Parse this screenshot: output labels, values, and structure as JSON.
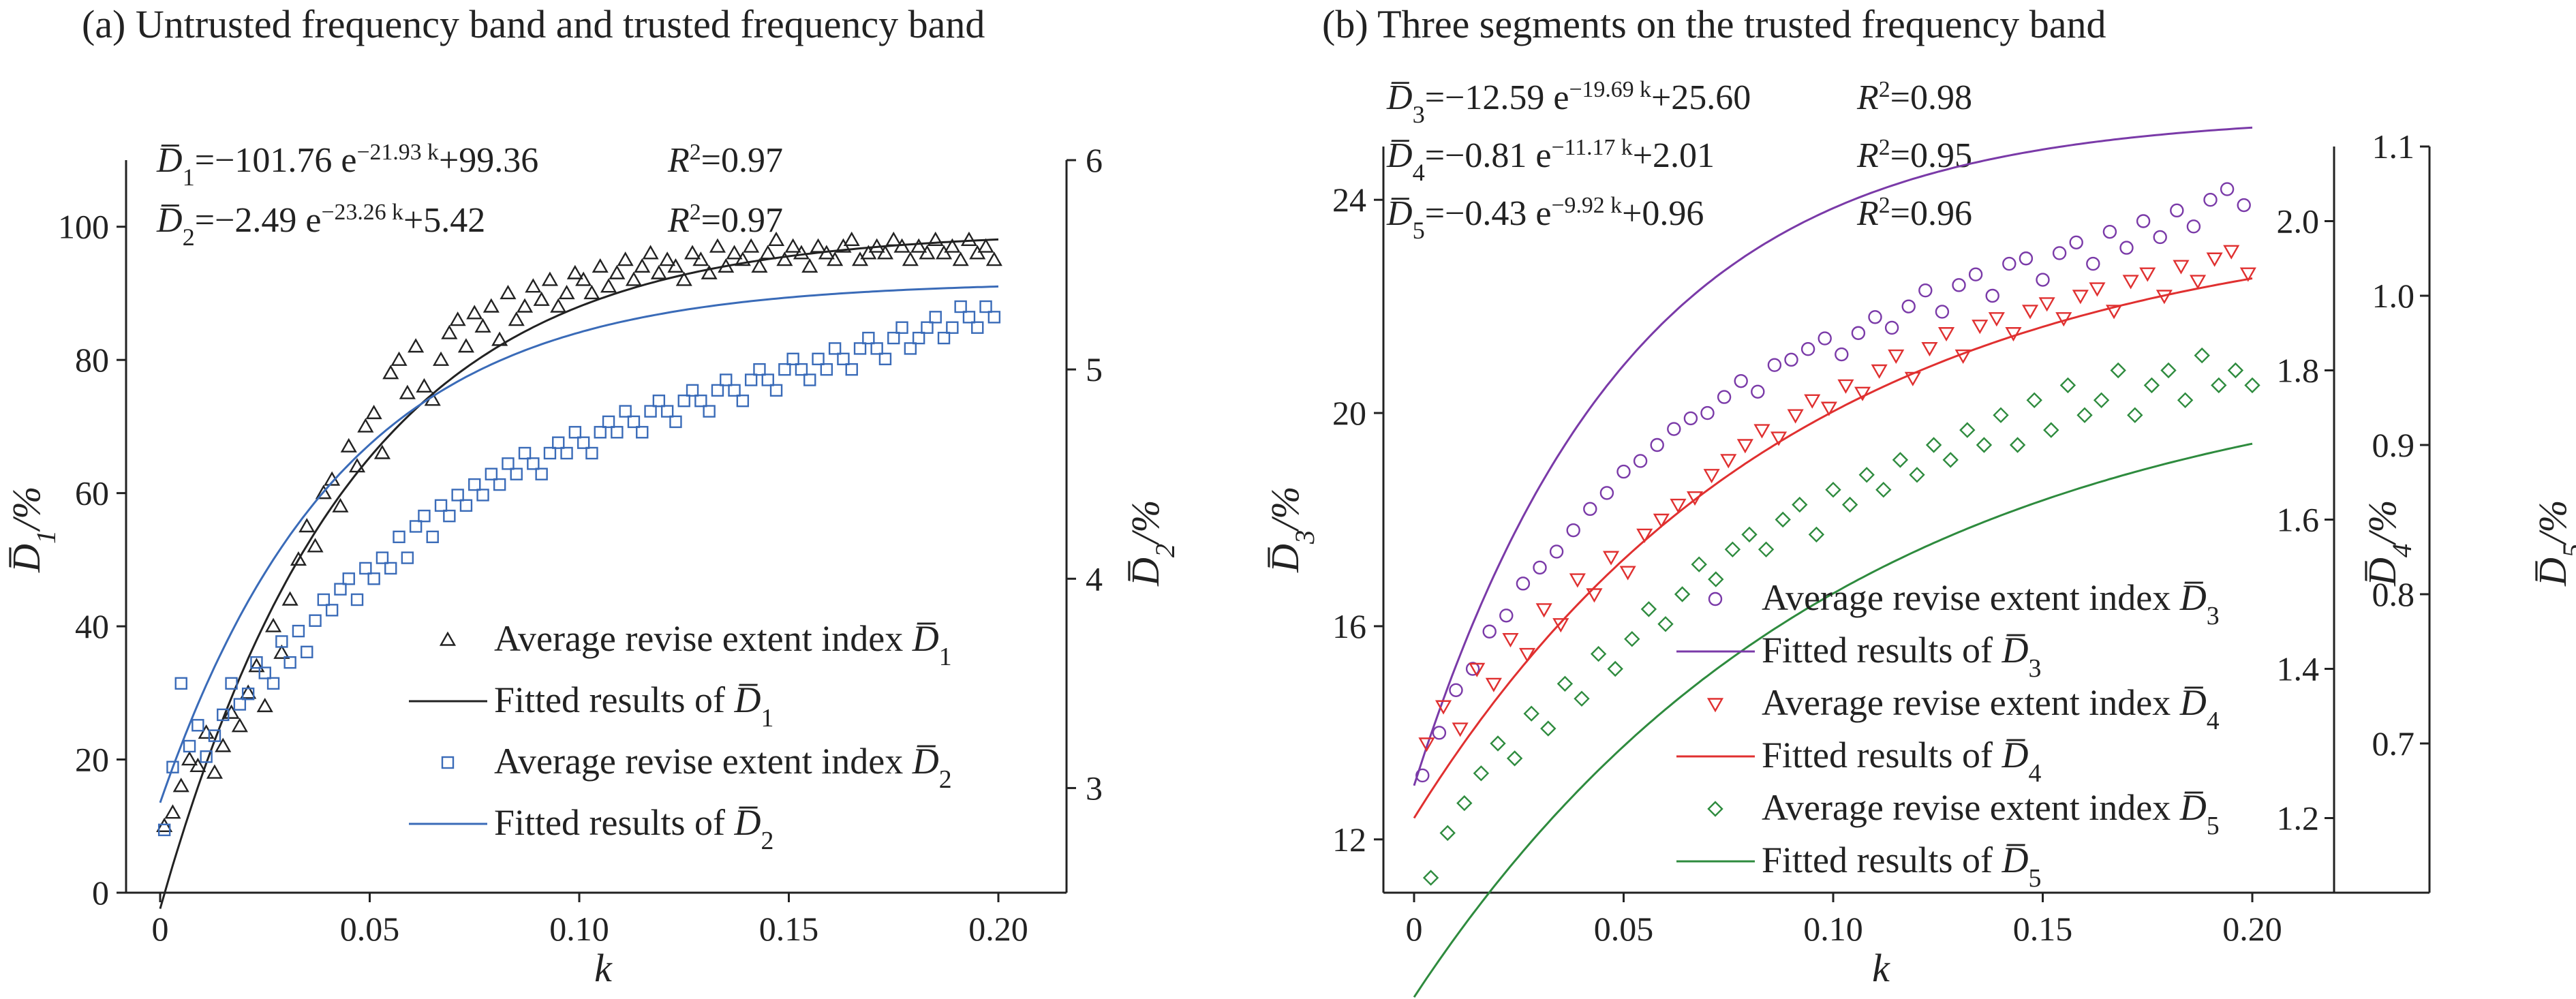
{
  "chart_data": [
    {
      "type": "scatter",
      "title": "(a) Untrusted frequency band and trusted frequency band",
      "xlabel": "k",
      "ylabel_left": "D̄1/%",
      "ylabel_right": "D̄2/%",
      "xlim": [
        0,
        0.2
      ],
      "ylim_left": [
        0,
        110
      ],
      "ylim_right": [
        2.5,
        6
      ],
      "x_ticks": [
        "0",
        "0.05",
        "0.10",
        "0.15",
        "0.20"
      ],
      "y_ticks_left": [
        "0",
        "20",
        "40",
        "60",
        "80",
        "100"
      ],
      "y_ticks_right": [
        "3",
        "4",
        "5",
        "6"
      ],
      "equations": [
        {
          "lhs": "D̄",
          "sub": "1",
          "body": "=−101.76 e",
          "exp": "−21.93 k",
          "tail": "+99.36",
          "r2": "R²=0.97"
        },
        {
          "lhs": "D̄",
          "sub": "2",
          "body": "=−2.49 e",
          "exp": "−23.26 k",
          "tail": "+5.42",
          "r2": "R²=0.97"
        }
      ],
      "legend": [
        {
          "label": "Average revise extent index D̄",
          "sub": "1",
          "marker": "triangle",
          "color": "#222222"
        },
        {
          "label": "Fitted results of D̄",
          "sub": "1",
          "marker": "line",
          "color": "#222222"
        },
        {
          "label": "Average revise extent index D̄",
          "sub": "2",
          "marker": "square",
          "color": "#3a6bb8"
        },
        {
          "label": "Fitted results of D̄",
          "sub": "2",
          "marker": "line",
          "color": "#3a6bb8"
        }
      ],
      "series": [
        {
          "fit": {
            "a": -101.76,
            "b": -21.93,
            "c": 99.36
          },
          "axis": "left",
          "color": "#222222",
          "marker": "triangle",
          "points_x": [
            0.001,
            0.003,
            0.005,
            0.007,
            0.009,
            0.011,
            0.013,
            0.015,
            0.017,
            0.019,
            0.021,
            0.023,
            0.025,
            0.027,
            0.029,
            0.031,
            0.033,
            0.035,
            0.037,
            0.039,
            0.041,
            0.043,
            0.045,
            0.047,
            0.049,
            0.051,
            0.053,
            0.055,
            0.057,
            0.059,
            0.061,
            0.063,
            0.065,
            0.067,
            0.069,
            0.071,
            0.073,
            0.075,
            0.077,
            0.079,
            0.081,
            0.083,
            0.085,
            0.087,
            0.089,
            0.091,
            0.093,
            0.095,
            0.097,
            0.099,
            0.101,
            0.103,
            0.105,
            0.107,
            0.109,
            0.111,
            0.113,
            0.115,
            0.117,
            0.119,
            0.121,
            0.123,
            0.125,
            0.127,
            0.129,
            0.131,
            0.133,
            0.135,
            0.137,
            0.139,
            0.141,
            0.143,
            0.145,
            0.147,
            0.149,
            0.151,
            0.153,
            0.155,
            0.157,
            0.159,
            0.161,
            0.163,
            0.165,
            0.167,
            0.169,
            0.171,
            0.173,
            0.175,
            0.177,
            0.179,
            0.181,
            0.183,
            0.185,
            0.187,
            0.189,
            0.191,
            0.193,
            0.195,
            0.197,
            0.199
          ],
          "points_y": [
            10,
            12,
            16,
            20,
            19,
            24,
            18,
            22,
            27,
            25,
            30,
            34,
            28,
            40,
            36,
            44,
            50,
            55,
            52,
            60,
            62,
            58,
            67,
            64,
            70,
            72,
            66,
            78,
            80,
            75,
            82,
            76,
            74,
            80,
            84,
            86,
            82,
            87,
            85,
            88,
            83,
            90,
            86,
            88,
            91,
            89,
            92,
            88,
            90,
            93,
            92,
            90,
            94,
            91,
            93,
            95,
            92,
            94,
            96,
            93,
            95,
            94,
            92,
            96,
            95,
            93,
            97,
            94,
            96,
            95,
            97,
            94,
            96,
            98,
            95,
            97,
            96,
            94,
            97,
            96,
            95,
            97,
            98,
            95,
            96,
            97,
            96,
            98,
            97,
            95,
            97,
            96,
            98,
            96,
            97,
            95,
            98,
            96,
            97,
            95
          ]
        },
        {
          "fit": {
            "a": -2.49,
            "b": -23.26,
            "c": 5.42
          },
          "axis": "right",
          "color": "#3a6bb8",
          "marker": "square",
          "points_x": [
            0.001,
            0.003,
            0.005,
            0.007,
            0.009,
            0.011,
            0.013,
            0.015,
            0.017,
            0.019,
            0.021,
            0.023,
            0.025,
            0.027,
            0.029,
            0.031,
            0.033,
            0.035,
            0.037,
            0.039,
            0.041,
            0.043,
            0.045,
            0.047,
            0.049,
            0.051,
            0.053,
            0.055,
            0.057,
            0.059,
            0.061,
            0.063,
            0.065,
            0.067,
            0.069,
            0.071,
            0.073,
            0.075,
            0.077,
            0.079,
            0.081,
            0.083,
            0.085,
            0.087,
            0.089,
            0.091,
            0.093,
            0.095,
            0.097,
            0.099,
            0.101,
            0.103,
            0.105,
            0.107,
            0.109,
            0.111,
            0.113,
            0.115,
            0.117,
            0.119,
            0.121,
            0.123,
            0.125,
            0.127,
            0.129,
            0.131,
            0.133,
            0.135,
            0.137,
            0.139,
            0.141,
            0.143,
            0.145,
            0.147,
            0.149,
            0.151,
            0.153,
            0.155,
            0.157,
            0.159,
            0.161,
            0.163,
            0.165,
            0.167,
            0.169,
            0.171,
            0.173,
            0.175,
            0.177,
            0.179,
            0.181,
            0.183,
            0.185,
            0.187,
            0.189,
            0.191,
            0.193,
            0.195,
            0.197,
            0.199
          ],
          "points_y": [
            2.8,
            3.1,
            3.5,
            3.2,
            3.3,
            3.15,
            3.25,
            3.35,
            3.5,
            3.4,
            3.45,
            3.6,
            3.55,
            3.5,
            3.7,
            3.6,
            3.75,
            3.65,
            3.8,
            3.9,
            3.85,
            3.95,
            4.0,
            3.9,
            4.05,
            4.0,
            4.1,
            4.05,
            4.2,
            4.1,
            4.25,
            4.3,
            4.2,
            4.35,
            4.3,
            4.4,
            4.35,
            4.45,
            4.4,
            4.5,
            4.45,
            4.55,
            4.5,
            4.6,
            4.55,
            4.5,
            4.6,
            4.65,
            4.6,
            4.7,
            4.65,
            4.6,
            4.7,
            4.75,
            4.7,
            4.8,
            4.75,
            4.7,
            4.8,
            4.85,
            4.8,
            4.75,
            4.85,
            4.9,
            4.85,
            4.8,
            4.9,
            4.95,
            4.9,
            4.85,
            4.95,
            5.0,
            4.95,
            4.9,
            5.0,
            5.05,
            5.0,
            4.95,
            5.05,
            5.0,
            5.1,
            5.05,
            5.0,
            5.1,
            5.15,
            5.1,
            5.05,
            5.15,
            5.2,
            5.1,
            5.15,
            5.2,
            5.25,
            5.15,
            5.2,
            5.3,
            5.25,
            5.2,
            5.3,
            5.25
          ]
        }
      ]
    },
    {
      "type": "scatter",
      "title": "(b) Three segments on the trusted frequency band",
      "xlabel": "k",
      "ylabel_left": "D̄3/%",
      "ylabel_right1": "D̄4/%",
      "ylabel_right2": "D̄5/%",
      "xlim": [
        0,
        0.2
      ],
      "ylim_left": [
        11,
        25
      ],
      "ylim_right1": [
        1.1,
        2.1
      ],
      "ylim_right2": [
        0.6,
        1.1
      ],
      "x_ticks": [
        "0",
        "0.05",
        "0.10",
        "0.15",
        "0.20"
      ],
      "y_ticks_left": [
        "12",
        "16",
        "20",
        "24"
      ],
      "y_ticks_right1": [
        "1.2",
        "1.4",
        "1.6",
        "1.8",
        "2.0"
      ],
      "y_ticks_right2": [
        "0.7",
        "0.8",
        "0.9",
        "1.0",
        "1.1"
      ],
      "equations": [
        {
          "lhs": "D̄",
          "sub": "3",
          "body": "=−12.59 e",
          "exp": "−19.69 k",
          "tail": "+25.60",
          "r2": "R²=0.98"
        },
        {
          "lhs": "D̄",
          "sub": "4",
          "body": "=−0.81 e",
          "exp": "−11.17 k",
          "tail": "+2.01",
          "r2": "R²=0.95"
        },
        {
          "lhs": "D̄",
          "sub": "5",
          "body": "=−0.43 e",
          "exp": "−9.92 k",
          "tail": "+0.96",
          "r2": "R²=0.96"
        }
      ],
      "legend": [
        {
          "label": "Average revise extent index D̄",
          "sub": "3",
          "marker": "circle",
          "color": "#7a3aa8"
        },
        {
          "label": "Fitted results of D̄",
          "sub": "3",
          "marker": "line",
          "color": "#7a3aa8"
        },
        {
          "label": "Average revise extent index D̄",
          "sub": "4",
          "marker": "triangle-down",
          "color": "#e03030"
        },
        {
          "label": "Fitted results of D̄",
          "sub": "4",
          "marker": "line",
          "color": "#e03030"
        },
        {
          "label": "Average revise extent index D̄",
          "sub": "5",
          "marker": "diamond",
          "color": "#2e8b3e"
        },
        {
          "label": "Fitted results of D̄",
          "sub": "5",
          "marker": "line",
          "color": "#2e8b3e"
        }
      ],
      "series": [
        {
          "fit": {
            "a": -12.59,
            "b": -19.69,
            "c": 25.6
          },
          "axis": "left",
          "color": "#7a3aa8",
          "marker": "circle",
          "points_x": [
            0.002,
            0.006,
            0.01,
            0.014,
            0.018,
            0.022,
            0.026,
            0.03,
            0.034,
            0.038,
            0.042,
            0.046,
            0.05,
            0.054,
            0.058,
            0.062,
            0.066,
            0.07,
            0.074,
            0.078,
            0.082,
            0.086,
            0.09,
            0.094,
            0.098,
            0.102,
            0.106,
            0.11,
            0.114,
            0.118,
            0.122,
            0.126,
            0.13,
            0.134,
            0.138,
            0.142,
            0.146,
            0.15,
            0.154,
            0.158,
            0.162,
            0.166,
            0.17,
            0.174,
            0.178,
            0.182,
            0.186,
            0.19,
            0.194,
            0.198
          ],
          "points_y": [
            13.2,
            14.0,
            14.8,
            15.2,
            15.9,
            16.2,
            16.8,
            17.1,
            17.4,
            17.8,
            18.2,
            18.5,
            18.9,
            19.1,
            19.4,
            19.7,
            19.9,
            20.0,
            20.3,
            20.6,
            20.4,
            20.9,
            21.0,
            21.2,
            21.4,
            21.1,
            21.5,
            21.8,
            21.6,
            22.0,
            22.3,
            21.9,
            22.4,
            22.6,
            22.2,
            22.8,
            22.9,
            22.5,
            23.0,
            23.2,
            22.8,
            23.4,
            23.1,
            23.6,
            23.3,
            23.8,
            23.5,
            24.0,
            24.2,
            23.9
          ]
        },
        {
          "fit": {
            "a": -0.81,
            "b": -11.17,
            "c": 2.01
          },
          "axis": "right1",
          "color": "#e03030",
          "marker": "triangle-down",
          "points_x": [
            0.003,
            0.007,
            0.011,
            0.015,
            0.019,
            0.023,
            0.027,
            0.031,
            0.035,
            0.039,
            0.043,
            0.047,
            0.051,
            0.055,
            0.059,
            0.063,
            0.067,
            0.071,
            0.075,
            0.079,
            0.083,
            0.087,
            0.091,
            0.095,
            0.099,
            0.103,
            0.107,
            0.111,
            0.115,
            0.119,
            0.123,
            0.127,
            0.131,
            0.135,
            0.139,
            0.143,
            0.147,
            0.151,
            0.155,
            0.159,
            0.163,
            0.167,
            0.171,
            0.175,
            0.179,
            0.183,
            0.187,
            0.191,
            0.195,
            0.199
          ],
          "points_y": [
            1.3,
            1.35,
            1.32,
            1.4,
            1.38,
            1.44,
            1.42,
            1.48,
            1.46,
            1.52,
            1.5,
            1.55,
            1.53,
            1.58,
            1.6,
            1.62,
            1.63,
            1.66,
            1.68,
            1.7,
            1.72,
            1.71,
            1.74,
            1.76,
            1.75,
            1.78,
            1.77,
            1.8,
            1.82,
            1.79,
            1.83,
            1.85,
            1.82,
            1.86,
            1.87,
            1.85,
            1.88,
            1.89,
            1.87,
            1.9,
            1.91,
            1.88,
            1.92,
            1.93,
            1.9,
            1.94,
            1.92,
            1.95,
            1.96,
            1.93
          ]
        },
        {
          "fit": {
            "a": -0.43,
            "b": -9.92,
            "c": 0.96
          },
          "axis": "right2",
          "color": "#2e8b3e",
          "marker": "diamond",
          "points_x": [
            0.004,
            0.008,
            0.012,
            0.016,
            0.02,
            0.024,
            0.028,
            0.032,
            0.036,
            0.04,
            0.044,
            0.048,
            0.052,
            0.056,
            0.06,
            0.064,
            0.068,
            0.072,
            0.076,
            0.08,
            0.084,
            0.088,
            0.092,
            0.096,
            0.1,
            0.104,
            0.108,
            0.112,
            0.116,
            0.12,
            0.124,
            0.128,
            0.132,
            0.136,
            0.14,
            0.144,
            0.148,
            0.152,
            0.156,
            0.16,
            0.164,
            0.168,
            0.172,
            0.176,
            0.18,
            0.184,
            0.188,
            0.192,
            0.196,
            0.2
          ],
          "points_y": [
            0.61,
            0.64,
            0.66,
            0.68,
            0.7,
            0.69,
            0.72,
            0.71,
            0.74,
            0.73,
            0.76,
            0.75,
            0.77,
            0.79,
            0.78,
            0.8,
            0.82,
            0.81,
            0.83,
            0.84,
            0.83,
            0.85,
            0.86,
            0.84,
            0.87,
            0.86,
            0.88,
            0.87,
            0.89,
            0.88,
            0.9,
            0.89,
            0.91,
            0.9,
            0.92,
            0.9,
            0.93,
            0.91,
            0.94,
            0.92,
            0.93,
            0.95,
            0.92,
            0.94,
            0.95,
            0.93,
            0.96,
            0.94,
            0.95,
            0.94
          ]
        }
      ]
    }
  ]
}
